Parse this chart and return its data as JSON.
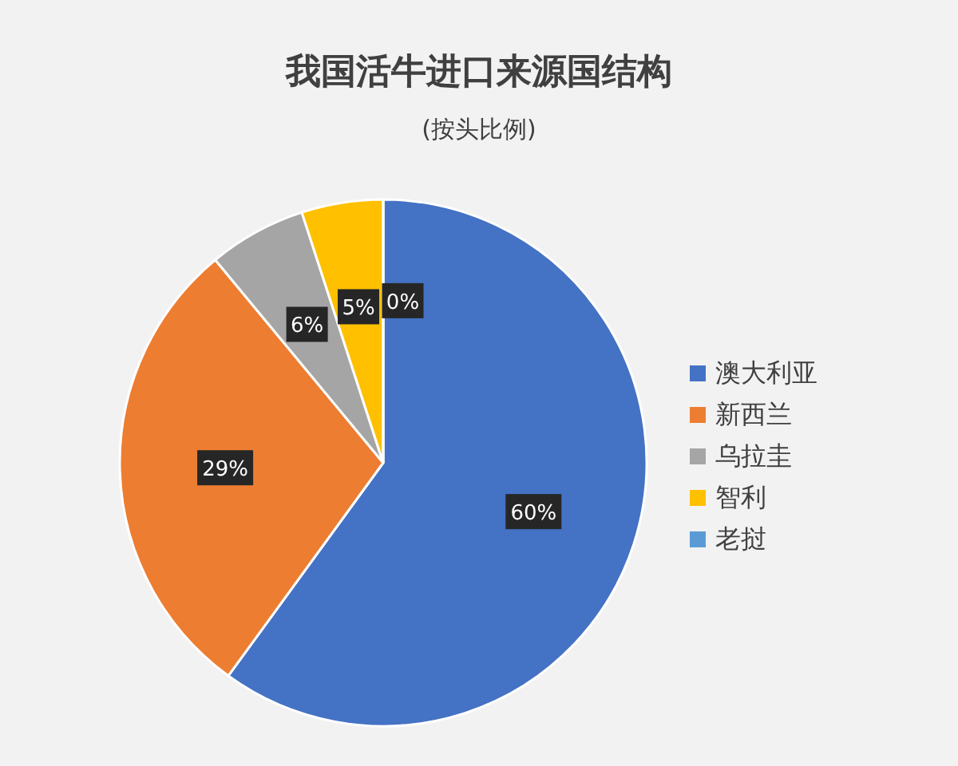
{
  "chart_data": {
    "type": "pie",
    "title": "我国活牛进口来源国结构",
    "subtitle": "(按头比例)",
    "categories": [
      "澳大利亚",
      "新西兰",
      "乌拉圭",
      "智利",
      "老挝"
    ],
    "values": [
      60,
      29,
      6,
      5,
      0
    ],
    "colors": [
      "#4472c4",
      "#ed7d31",
      "#a5a5a5",
      "#ffc000",
      "#5b9bd5"
    ],
    "value_labels": [
      "60%",
      "29%",
      "6%",
      "5%",
      "0%"
    ],
    "legend": "right"
  }
}
